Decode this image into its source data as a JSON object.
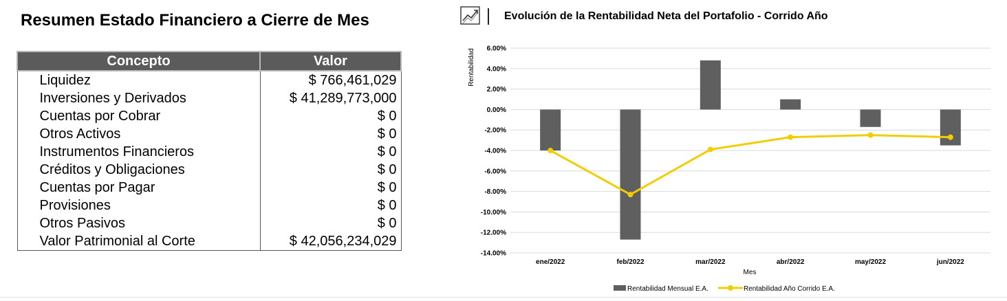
{
  "summary": {
    "title": "Resumen Estado Financiero a Cierre de Mes",
    "headers": {
      "concept": "Concepto",
      "value": "Valor"
    },
    "rows": [
      {
        "concept": "Liquidez",
        "value": "$ 766,461,029"
      },
      {
        "concept": "Inversiones y Derivados",
        "value": "$ 41,289,773,000"
      },
      {
        "concept": "Cuentas por Cobrar",
        "value": "$ 0"
      },
      {
        "concept": "Otros Activos",
        "value": "$ 0"
      },
      {
        "concept": "Instrumentos Financieros",
        "value": "$ 0"
      },
      {
        "concept": "Créditos y Obligaciones",
        "value": "$ 0"
      },
      {
        "concept": "Cuentas por Pagar",
        "value": "$ 0"
      },
      {
        "concept": "Provisiones",
        "value": "$ 0"
      },
      {
        "concept": "Otros Pasivos",
        "value": "$ 0"
      },
      {
        "concept": "Valor Patrimonial al Corte",
        "value": "$ 42,056,234,029"
      }
    ]
  },
  "chart_header": {
    "title": "Evolución de la Rentabilidad Neta del Portafolio - Corrido Año",
    "icon": "trend-chart-icon"
  },
  "chart_data": {
    "type": "bar",
    "title": "Evolución de la Rentabilidad Neta del Portafolio - Corrido Año",
    "xlabel": "Mes",
    "ylabel": "Rentabilidad",
    "categories": [
      "ene/2022",
      "feb/2022",
      "mar/2022",
      "abr/2022",
      "may/2022",
      "jun/2022"
    ],
    "ylim": [
      -14,
      6
    ],
    "yticks": [
      6,
      4,
      2,
      0,
      -2,
      -4,
      -6,
      -8,
      -10,
      -12,
      -14
    ],
    "ytick_labels": [
      "6.00%",
      "4.00%",
      "2.00%",
      "0.00%",
      "-2.00%",
      "-4.00%",
      "-6.00%",
      "-8.00%",
      "-10.00%",
      "-12.00%",
      "-14.00%"
    ],
    "grid": true,
    "legend_position": "bottom",
    "series": [
      {
        "name": "Rentabilidad Mensual E.A.",
        "kind": "bar",
        "color": "#5f5f5f",
        "values": [
          -4.0,
          -12.7,
          4.8,
          1.0,
          -1.7,
          -3.5
        ]
      },
      {
        "name": "Rentabilidad Año Corrido E.A.",
        "kind": "line",
        "color": "#f2cd00",
        "values": [
          -4.0,
          -8.3,
          -3.9,
          -2.7,
          -2.5,
          -2.7
        ]
      }
    ]
  }
}
